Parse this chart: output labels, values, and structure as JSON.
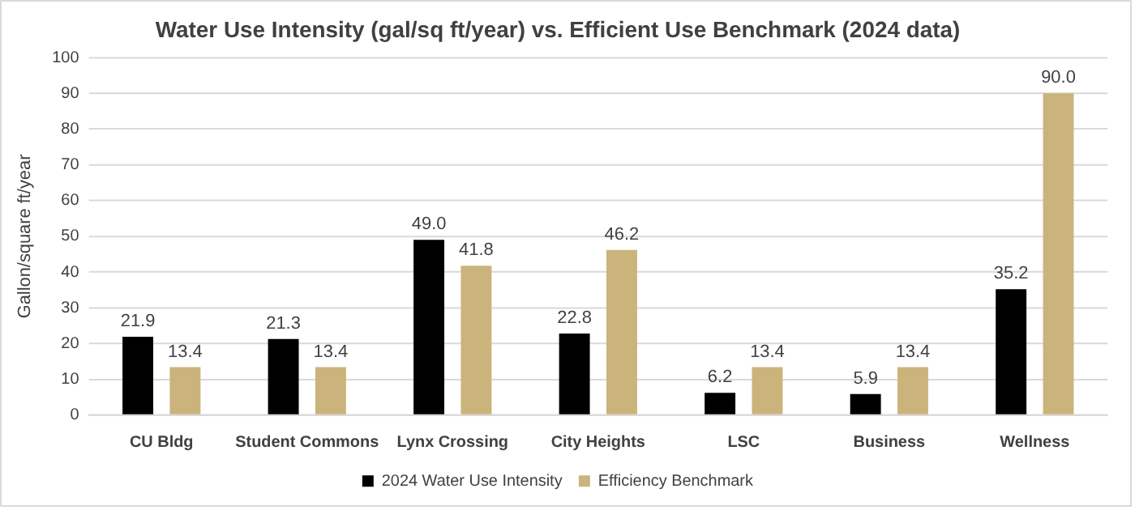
{
  "chart_data": {
    "type": "bar",
    "title": "Water Use Intensity (gal/sq ft/year) vs. Efficient Use Benchmark (2024 data)",
    "ylabel": "Gallon/square ft/year",
    "categories": [
      "CU Bldg",
      "Student Commons",
      "Lynx Crossing",
      "City Heights",
      "LSC",
      "Business",
      "Wellness"
    ],
    "series": [
      {
        "name": "2024 Water Use Intensity",
        "color": "#000000",
        "values": [
          21.9,
          21.3,
          49.0,
          22.8,
          6.2,
          5.9,
          35.2
        ],
        "value_labels": [
          "21.9",
          "21.3",
          "49.0",
          "22.8",
          "6.2",
          "5.9",
          "35.2"
        ]
      },
      {
        "name": "Efficiency Benchmark",
        "color": "#cbb47b",
        "values": [
          13.4,
          13.4,
          41.8,
          46.2,
          13.4,
          13.4,
          90.0
        ],
        "value_labels": [
          "13.4",
          "13.4",
          "41.8",
          "46.2",
          "13.4",
          "13.4",
          "90.0"
        ]
      }
    ],
    "ylim": [
      0,
      100
    ],
    "yticks": [
      0,
      10,
      20,
      30,
      40,
      50,
      60,
      70,
      80,
      90,
      100
    ],
    "grid": "y",
    "legend": "bottom"
  }
}
